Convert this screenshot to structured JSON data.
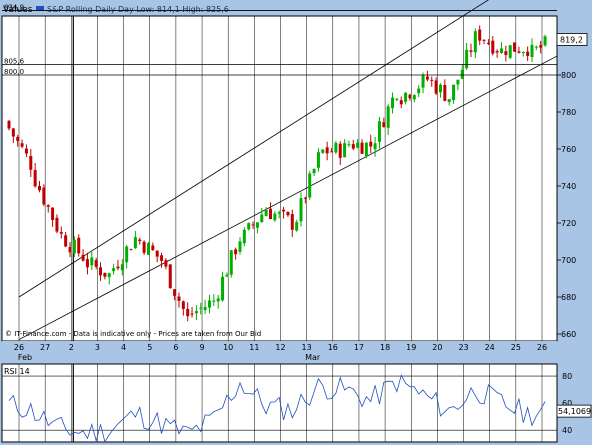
{
  "header": {
    "values_label": "Values",
    "legend_series": "S&P Rolling Daily",
    "legend_stats": "Day Low: 814,1 High: 825,6"
  },
  "main_panel": {
    "price_axis_ticks": [
      660,
      680,
      700,
      720,
      740,
      760,
      780,
      800
    ],
    "price_range": [
      657,
      838
    ],
    "horizontal_lines": [
      {
        "label": "834,9",
        "value": 834.9
      },
      {
        "label": "805,6",
        "value": 805.6
      },
      {
        "label": "800,0",
        "value": 800.0
      }
    ],
    "last_price_label": "819,2",
    "last_price": 819.2,
    "copyright": "© IT-Finance.com - Data is indicative only - Prices are taken from Our Bid",
    "colors": {
      "up": "#00b000",
      "down": "#c00000",
      "line": "#000000",
      "panel_bg": "#ffffff",
      "frame_bg": "#a9c5e6"
    }
  },
  "x_axis": {
    "day_labels": [
      "26",
      "27",
      "2",
      "3",
      "4",
      "5",
      "6",
      "9",
      "10",
      "11",
      "12",
      "13",
      "16",
      "17",
      "18",
      "19",
      "20",
      "23",
      "24",
      "25",
      "26"
    ],
    "month_labels": [
      {
        "label": "Feb",
        "day_index": 0
      },
      {
        "label": "Mar",
        "day_index": 11
      }
    ]
  },
  "rsi_panel": {
    "title": "RSI 14",
    "axis_ticks": [
      40,
      60,
      80
    ],
    "range": [
      30,
      85
    ],
    "last_value_label": "54,1069",
    "last_value": 54.1069,
    "line_color": "#2050c0"
  },
  "chart_data": [
    {
      "type": "candlestick",
      "series": "S&P Rolling Daily",
      "ylim": [
        657,
        838
      ],
      "x": [
        "26",
        "27",
        "2",
        "3",
        "4",
        "5",
        "6",
        "9",
        "10",
        "11",
        "12",
        "13",
        "16",
        "17",
        "18",
        "19",
        "20",
        "23",
        "24",
        "25",
        "26"
      ],
      "close_by_day": [
        752,
        718,
        702,
        692,
        712,
        700,
        668,
        678,
        712,
        728,
        720,
        755,
        760,
        762,
        792,
        796,
        788,
        820,
        813,
        815,
        819.2
      ],
      "channel": {
        "upper": [
          [
            0,
            680
          ],
          [
            19,
            850
          ]
        ],
        "lower": [
          [
            0,
            657
          ],
          [
            20,
            807
          ]
        ]
      },
      "horizontal_lines": [
        834.9,
        805.6,
        800.0
      ],
      "vertical_marker_day": 2
    },
    {
      "type": "line",
      "series": "RSI 14",
      "ylim": [
        30,
        85
      ],
      "x": [
        "26",
        "27",
        "2",
        "3",
        "4",
        "5",
        "6",
        "9",
        "10",
        "11",
        "12",
        "13",
        "16",
        "17",
        "18",
        "19",
        "20",
        "23",
        "24",
        "25",
        "26"
      ],
      "values": [
        55,
        42,
        38,
        40,
        52,
        45,
        37,
        48,
        75,
        58,
        55,
        72,
        70,
        62,
        76,
        66,
        54,
        70,
        60,
        52,
        54.1069
      ]
    }
  ]
}
